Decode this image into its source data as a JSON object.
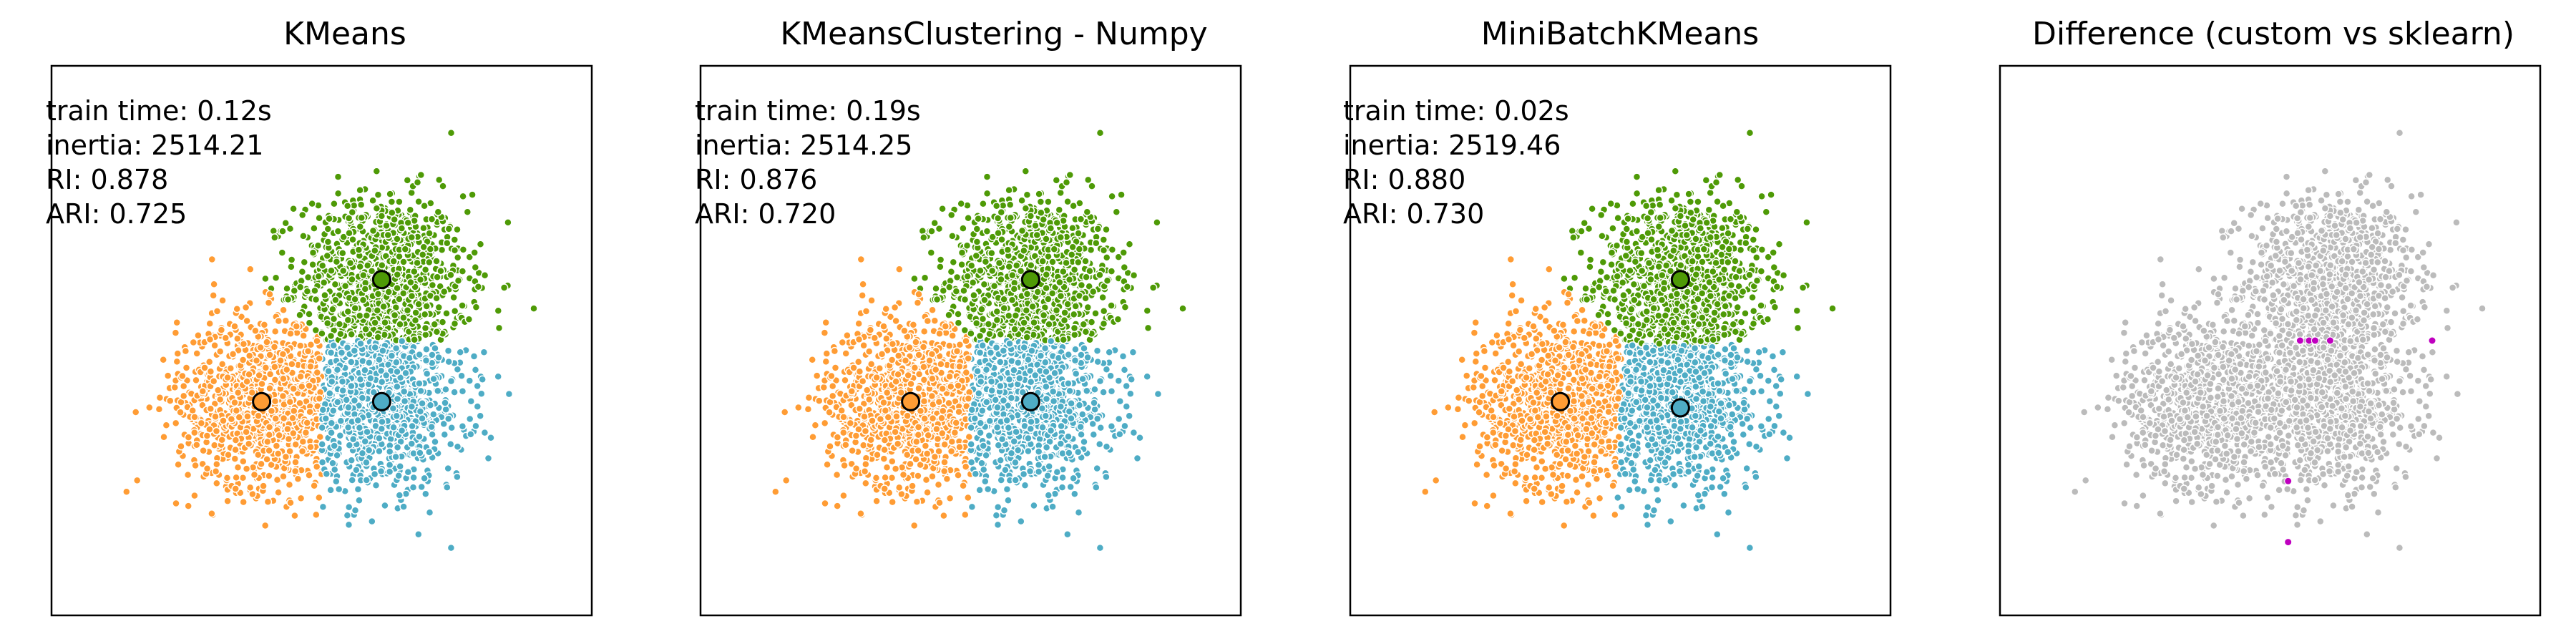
{
  "chart_data": [
    {
      "type": "scatter",
      "title": "KMeans",
      "stats": [
        "train time: 0.12s",
        "inertia: 2514.21",
        "RI: 0.878",
        "ARI: 0.725"
      ],
      "xticks": [],
      "yticks": [],
      "grid": false,
      "xlim": [
        -4.5,
        4.5
      ],
      "ylim": [
        -4.5,
        4.5
      ],
      "clusters": [
        {
          "color": "#4EACC5",
          "center": [
            1.0,
            -1.0
          ]
        },
        {
          "color": "#FF9C34",
          "center": [
            -1.0,
            -1.0
          ]
        },
        {
          "color": "#4E9A06",
          "center": [
            1.0,
            1.0
          ]
        }
      ]
    },
    {
      "type": "scatter",
      "title": "KMeansClustering - Numpy",
      "stats": [
        "train time: 0.19s",
        "inertia: 2514.25",
        "RI: 0.876",
        "ARI: 0.720"
      ],
      "xticks": [],
      "yticks": [],
      "grid": false,
      "xlim": [
        -4.5,
        4.5
      ],
      "ylim": [
        -4.5,
        4.5
      ],
      "clusters": [
        {
          "color": "#4EACC5",
          "center": [
            1.0,
            -1.0
          ]
        },
        {
          "color": "#FF9C34",
          "center": [
            -1.0,
            -1.0
          ]
        },
        {
          "color": "#4E9A06",
          "center": [
            1.0,
            1.0
          ]
        }
      ]
    },
    {
      "type": "scatter",
      "title": "MiniBatchKMeans",
      "stats": [
        "train time: 0.02s",
        "inertia: 2519.46",
        "RI: 0.880",
        "ARI: 0.730"
      ],
      "xticks": [],
      "yticks": [],
      "grid": false,
      "xlim": [
        -4.5,
        4.5
      ],
      "ylim": [
        -4.5,
        4.5
      ],
      "clusters": [
        {
          "color": "#4EACC5",
          "center": [
            1.0,
            -1.1
          ]
        },
        {
          "color": "#FF9C34",
          "center": [
            -1.0,
            -1.0
          ]
        },
        {
          "color": "#4E9A06",
          "center": [
            1.0,
            1.0
          ]
        }
      ]
    },
    {
      "type": "scatter",
      "title": "Difference (custom vs sklearn)",
      "stats": [],
      "xticks": [],
      "yticks": [],
      "grid": false,
      "xlim": [
        -4.5,
        4.5
      ],
      "ylim": [
        -4.5,
        4.5
      ],
      "background_color": "#bbbbbb",
      "highlight_color": "#bf00bf",
      "highlight_points": [
        [
          0.5,
          0.0
        ],
        [
          0.65,
          0.0
        ],
        [
          0.75,
          0.0
        ],
        [
          1.0,
          0.0
        ],
        [
          2.7,
          0.0
        ],
        [
          0.3,
          -2.3
        ],
        [
          0.3,
          -3.3
        ]
      ]
    }
  ]
}
